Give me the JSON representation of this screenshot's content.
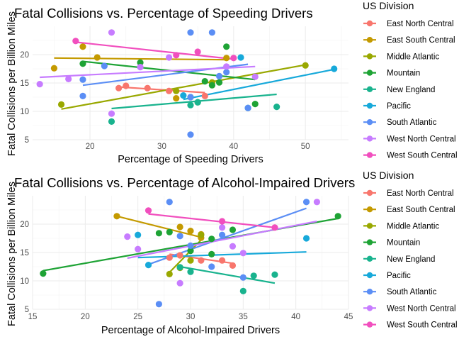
{
  "legend_title": "US Division",
  "divisions": [
    {
      "name": "East North Central",
      "color": "#F8766D"
    },
    {
      "name": "East South Central",
      "color": "#C49A00"
    },
    {
      "name": "Middle Atlantic",
      "color": "#99A800"
    },
    {
      "name": "Mountain",
      "color": "#1EA335"
    },
    {
      "name": "New England",
      "color": "#19B38E"
    },
    {
      "name": "Pacific",
      "color": "#17A9DA"
    },
    {
      "name": "South Atlantic",
      "color": "#5B8EF5"
    },
    {
      "name": "West North Central",
      "color": "#C77CFF"
    },
    {
      "name": "West South Central",
      "color": "#F14FBE"
    }
  ],
  "chart_data": [
    {
      "type": "scatter",
      "title": "Fatal Collisions vs. Percentage of Speeding Drivers",
      "xlabel": "Percentage of Speeding Drivers",
      "ylabel": "Fatal Collisions per Billion Miles",
      "xlim": [
        12,
        56
      ],
      "ylim": [
        5,
        25
      ],
      "xticks": [
        20,
        30,
        40,
        50
      ],
      "yticks": [
        5,
        10,
        15,
        20
      ],
      "grid": true,
      "legend_position": "right",
      "series": [
        {
          "name": "East North Central",
          "points": [
            [
              24,
              14.1
            ],
            [
              25,
              14.5
            ],
            [
              28,
              14.1
            ],
            [
              31,
              13.6
            ],
            [
              36,
              12.7
            ]
          ],
          "trend": [
            [
              24,
              14.3
            ],
            [
              36,
              13.3
            ]
          ]
        },
        {
          "name": "East South Central",
          "points": [
            [
              15,
              17.6
            ],
            [
              19,
              21.4
            ],
            [
              21,
              19.5
            ],
            [
              32,
              12.3
            ],
            [
              39,
              19.4
            ]
          ],
          "trend": [
            [
              15,
              19.4
            ],
            [
              39,
              19.1
            ]
          ]
        },
        {
          "name": "Middle Atlantic",
          "points": [
            [
              16,
              11.2
            ],
            [
              32,
              13.6
            ],
            [
              37,
              15.1
            ],
            [
              50,
              18.1
            ]
          ],
          "trend": [
            [
              16,
              10.4
            ],
            [
              50,
              18.2
            ]
          ]
        },
        {
          "name": "Mountain",
          "points": [
            [
              19,
              18.4
            ],
            [
              27,
              18.6
            ],
            [
              34,
              12.5
            ],
            [
              35,
              11.6
            ],
            [
              36,
              15.3
            ],
            [
              37,
              14.6
            ],
            [
              38,
              15.1
            ],
            [
              39,
              21.4
            ],
            [
              43,
              11.3
            ]
          ],
          "trend": [
            [
              19,
              18.8
            ],
            [
              43,
              15.6
            ]
          ]
        },
        {
          "name": "New England",
          "points": [
            [
              23,
              8.2
            ],
            [
              34,
              11.1
            ],
            [
              35,
              11.6
            ],
            [
              42,
              10.6
            ],
            [
              46,
              10.8
            ]
          ],
          "trend": [
            [
              23,
              10.5
            ],
            [
              46,
              13.0
            ]
          ]
        },
        {
          "name": "Pacific",
          "points": [
            [
              33,
              12.8
            ],
            [
              41,
              19.5
            ],
            [
              54,
              17.5
            ]
          ],
          "trend": [
            [
              33,
              12.1
            ],
            [
              54,
              17.4
            ]
          ]
        },
        {
          "name": "South Atlantic",
          "points": [
            [
              19,
              12.7
            ],
            [
              19,
              15.6
            ],
            [
              22,
              18.0
            ],
            [
              34,
              5.9
            ],
            [
              34,
              12.5
            ],
            [
              34,
              23.9
            ],
            [
              37,
              23.9
            ],
            [
              38,
              16.2
            ],
            [
              39,
              16.9
            ],
            [
              42,
              10.6
            ]
          ],
          "trend": [
            [
              19,
              14.6
            ],
            [
              42,
              18.3
            ]
          ]
        },
        {
          "name": "West North Central",
          "points": [
            [
              13,
              14.8
            ],
            [
              17,
              15.7
            ],
            [
              23,
              9.6
            ],
            [
              23,
              23.9
            ],
            [
              27,
              17.8
            ],
            [
              31,
              19.5
            ],
            [
              39,
              17.9
            ],
            [
              43,
              16.1
            ]
          ],
          "trend": [
            [
              13,
              16.0
            ],
            [
              43,
              17.9
            ]
          ]
        },
        {
          "name": "West South Central",
          "points": [
            [
              18,
              22.4
            ],
            [
              32,
              19.9
            ],
            [
              35,
              20.5
            ],
            [
              40,
              19.4
            ]
          ],
          "trend": [
            [
              18,
              22.2
            ],
            [
              40,
              19.2
            ]
          ]
        }
      ]
    },
    {
      "type": "scatter",
      "title": "Fatal Collisions vs. Percentage of Alcohol-Impaired Drivers",
      "xlabel": "Percentage of Alcohol-Impaired Drivers",
      "ylabel": "Fatal Collisions per Billion Miles",
      "xlim": [
        15,
        45
      ],
      "ylim": [
        5,
        25
      ],
      "xticks": [
        15,
        20,
        25,
        30,
        35,
        40,
        45
      ],
      "yticks": [
        5,
        10,
        15,
        20
      ],
      "grid": true,
      "legend_position": "right",
      "series": [
        {
          "name": "East North Central",
          "points": [
            [
              28,
              14.1
            ],
            [
              29,
              14.5
            ],
            [
              31,
              13.6
            ],
            [
              33,
              13.6
            ],
            [
              34,
              12.7
            ]
          ],
          "trend": [
            [
              28,
              14.7
            ],
            [
              34,
              13.1
            ]
          ]
        },
        {
          "name": "East South Central",
          "points": [
            [
              23,
              21.4
            ],
            [
              29,
              19.5
            ],
            [
              30,
              18.8
            ],
            [
              31,
              17.6
            ],
            [
              31,
              18.2
            ]
          ],
          "trend": [
            [
              23,
              21.4
            ],
            [
              31,
              17.7
            ]
          ]
        },
        {
          "name": "Middle Atlantic",
          "points": [
            [
              28,
              11.2
            ],
            [
              29,
              12.3
            ],
            [
              30,
              13.6
            ],
            [
              31,
              18.1
            ]
          ],
          "trend": [
            [
              28,
              11.5
            ],
            [
              31,
              17.2
            ]
          ]
        },
        {
          "name": "Mountain",
          "points": [
            [
              16,
              11.3
            ],
            [
              27,
              18.4
            ],
            [
              28,
              18.6
            ],
            [
              30,
              15.3
            ],
            [
              32,
              14.7
            ],
            [
              32,
              17.4
            ],
            [
              34,
              19.0
            ],
            [
              44,
              21.4
            ]
          ],
          "trend": [
            [
              16,
              11.8
            ],
            [
              44,
              21.0
            ]
          ]
        },
        {
          "name": "New England",
          "points": [
            [
              29,
              12.4
            ],
            [
              30,
              11.6
            ],
            [
              35,
              8.2
            ],
            [
              36,
              10.9
            ],
            [
              38,
              11.1
            ]
          ],
          "trend": [
            [
              29,
              12.5
            ],
            [
              38,
              9.6
            ]
          ]
        },
        {
          "name": "Pacific",
          "points": [
            [
              25,
              18.1
            ],
            [
              26,
              12.8
            ],
            [
              41,
              17.5
            ]
          ],
          "trend": [
            [
              25,
              14.1
            ],
            [
              41,
              15.1
            ]
          ]
        },
        {
          "name": "South Atlantic",
          "points": [
            [
              27,
              5.9
            ],
            [
              28,
              23.9
            ],
            [
              29,
              17.9
            ],
            [
              30,
              16.2
            ],
            [
              32,
              12.5
            ],
            [
              33,
              18.1
            ],
            [
              35,
              10.6
            ],
            [
              41,
              23.9
            ]
          ],
          "trend": [
            [
              26,
              12.9
            ],
            [
              41,
              22.8
            ]
          ]
        },
        {
          "name": "West North Central",
          "points": [
            [
              24,
              17.8
            ],
            [
              25,
              15.6
            ],
            [
              29,
              9.6
            ],
            [
              33,
              19.4
            ],
            [
              34,
              16.1
            ],
            [
              35,
              14.9
            ],
            [
              42,
              23.9
            ]
          ],
          "trend": [
            [
              24,
              14.0
            ],
            [
              42,
              20.5
            ]
          ]
        },
        {
          "name": "West South Central",
          "points": [
            [
              26,
              22.4
            ],
            [
              33,
              20.5
            ],
            [
              38,
              19.4
            ]
          ],
          "trend": [
            [
              26,
              21.8
            ],
            [
              38,
              19.4
            ]
          ]
        }
      ]
    }
  ]
}
